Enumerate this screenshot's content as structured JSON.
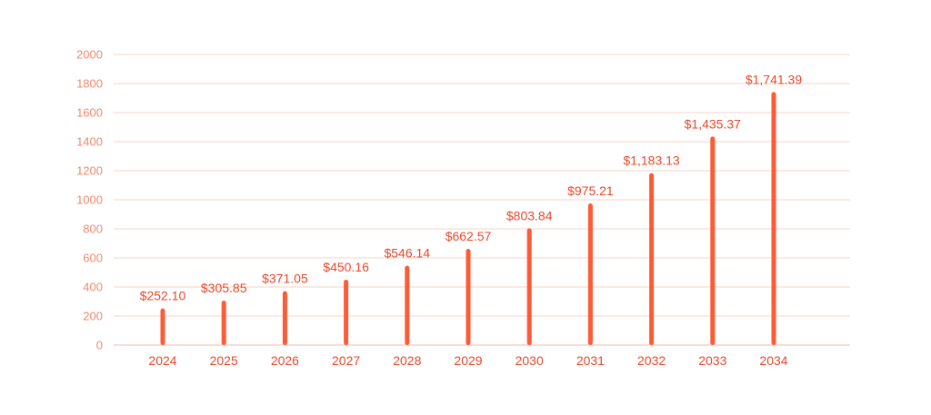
{
  "colors": {
    "bar": "#ff5a36",
    "label": "#e8482a",
    "axis_text": "#f08a6e",
    "grid": "#f7d3c8"
  },
  "chart_data": {
    "type": "bar",
    "categories": [
      "2024",
      "2025",
      "2026",
      "2027",
      "2028",
      "2029",
      "2030",
      "2031",
      "2032",
      "2033",
      "2034"
    ],
    "values": [
      252.1,
      305.85,
      371.05,
      450.16,
      546.14,
      662.57,
      803.84,
      975.21,
      1183.13,
      1435.37,
      1741.39
    ],
    "data_labels": [
      "$252.10",
      "$305.85",
      "$371.05",
      "$450.16",
      "$546.14",
      "$662.57",
      "$803.84",
      "$975.21",
      "$1,183.13",
      "$1,435.37",
      "$1,741.39"
    ],
    "yticks": [
      "0",
      "200",
      "400",
      "600",
      "800",
      "1000",
      "1200",
      "1400",
      "1600",
      "1800",
      "2000"
    ],
    "ylim": [
      0,
      2000
    ],
    "grid": true,
    "title": "",
    "xlabel": "",
    "ylabel": ""
  }
}
